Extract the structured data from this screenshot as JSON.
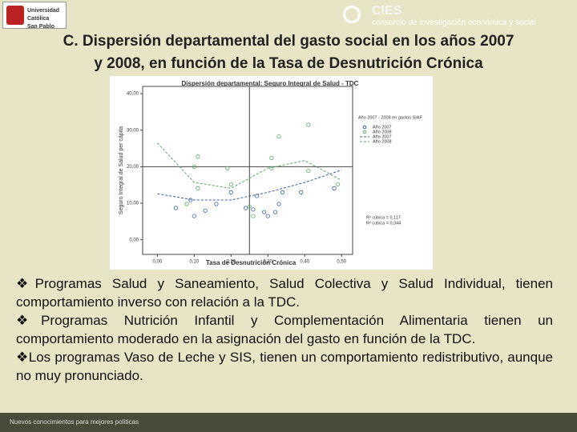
{
  "header": {
    "logo_text": [
      "Universidad Católica",
      "San Pablo"
    ],
    "org_name": "CIES",
    "org_subtitle": "consorcio de investigación económica y social"
  },
  "title": [
    "C. Dispersión departamental del gasto social en los años 2007",
    "y 2008, en función de la Tasa de Desnutrición Crónica"
  ],
  "chart_data": {
    "type": "scatter",
    "title": "Dispersión departamental: Seguro Integral de Salud - TDC",
    "x_label": "Tasa de Desnutrición Crónica",
    "y_label": "Seguro Integral de Salud per cápita",
    "xlim": [
      -0.04,
      0.53
    ],
    "ylim": [
      -4,
      42
    ],
    "xticks": [
      {
        "value": 0,
        "label": "0,00"
      },
      {
        "value": 0.1,
        "label": "0,10"
      },
      {
        "value": 0.2,
        "label": "0,20"
      },
      {
        "value": 0.3,
        "label": "0,30"
      },
      {
        "value": 0.4,
        "label": "0,40"
      },
      {
        "value": 0.5,
        "label": "0,50"
      }
    ],
    "yticks": [
      {
        "value": 0,
        "label": "0,00"
      },
      {
        "value": 10,
        "label": "10,00"
      },
      {
        "value": 20,
        "label": "20,00"
      },
      {
        "value": 30,
        "label": "30,00"
      },
      {
        "value": 40,
        "label": "40,00"
      }
    ],
    "ref_x": 0.25,
    "ref_y": 20,
    "legend_title": "Año 2007 - 2008 en gastos SIAF",
    "series": [
      {
        "name": "Año 2007",
        "kind": "points",
        "color": "#3a5fa8",
        "x": [
          0.05,
          0.09,
          0.1,
          0.13,
          0.16,
          0.2,
          0.24,
          0.26,
          0.27,
          0.29,
          0.3,
          0.32,
          0.33,
          0.34,
          0.39,
          0.48
        ],
        "values": [
          8.7,
          10.9,
          6.5,
          8.0,
          9.8,
          13.0,
          8.7,
          8.3,
          12.0,
          7.6,
          6.5,
          7.6,
          9.8,
          13.0,
          13.0,
          14.1
        ]
      },
      {
        "name": "Año 2008",
        "kind": "points",
        "color": "#5aa868",
        "x": [
          0.11,
          0.1,
          0.08,
          0.11,
          0.19,
          0.2,
          0.31,
          0.33,
          0.41,
          0.41,
          0.31,
          0.26,
          0.49,
          0.25
        ],
        "values": [
          22.8,
          20.0,
          9.8,
          14.1,
          19.6,
          15.2,
          22.4,
          28.3,
          31.5,
          18.9,
          19.6,
          6.5,
          15.2,
          9.1
        ]
      },
      {
        "name": "Año 2007",
        "kind": "fit",
        "color": "#3a5fa8",
        "x": [
          0,
          0.1,
          0.2,
          0.3,
          0.4,
          0.5
        ],
        "values": [
          12.6,
          10.9,
          10.9,
          13.0,
          15.7,
          19.1
        ]
      },
      {
        "name": "Año 2008",
        "kind": "fit",
        "color": "#5aa868",
        "x": [
          0,
          0.1,
          0.2,
          0.3,
          0.4,
          0.5
        ],
        "values": [
          26.5,
          15.7,
          14.1,
          19.6,
          21.7,
          16.3
        ]
      }
    ],
    "annotations": [
      "R² cúbica = 0,117",
      "R² cúbica = 0,344"
    ]
  },
  "bullets": [
    "Programas Salud y Saneamiento, Salud Colectiva y Salud Individual, tienen comportamiento inverso con relación a la TDC.",
    "Programas Nutrición Infantil y Complementación Alimentaria tienen un comportamiento moderado en la asignación del gasto en función de la TDC.",
    "Los programas Vaso de Leche y SIS, tienen un comportamiento redistributivo, aunque no muy pronunciado."
  ],
  "footer": "Nuevos conocimientos para mejores políticas"
}
